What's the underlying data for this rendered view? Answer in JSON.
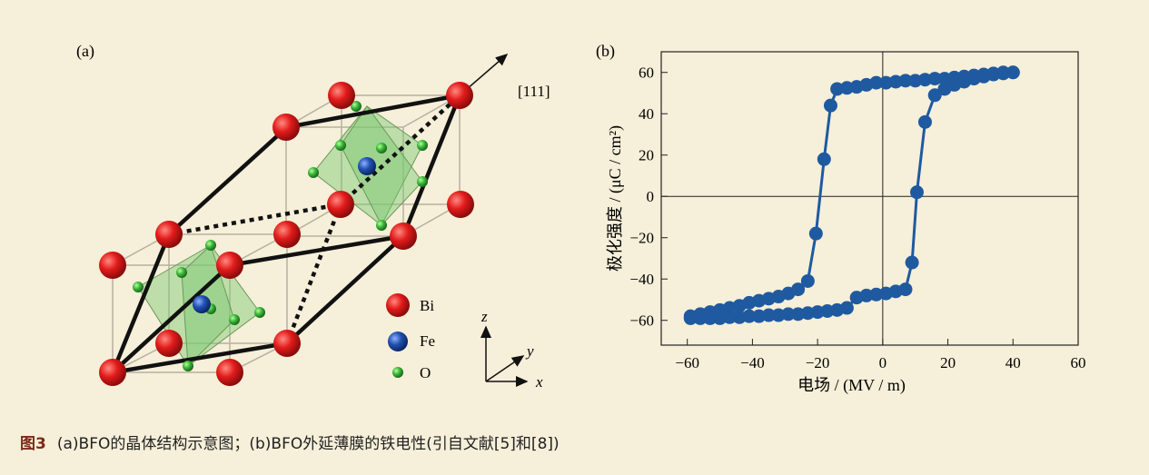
{
  "panel_a": {
    "label": "(a)",
    "direction": "[111]",
    "legend": [
      "Bi",
      "Fe",
      "O"
    ],
    "axes": [
      "z",
      "y",
      "x"
    ]
  },
  "chart_data": {
    "type": "line",
    "label": "(b)",
    "x_label": "电场 / (MV / m)",
    "y_label": "极化强度 / (μC / cm²)",
    "xlim": [
      -68,
      60
    ],
    "ylim": [
      -72,
      70
    ],
    "xticks": [
      {
        "value": -60,
        "label": "−60"
      },
      {
        "value": -40,
        "label": "−40"
      },
      {
        "value": -20,
        "label": "−20"
      },
      0,
      20,
      40,
      60
    ],
    "yticks": [
      {
        "value": -60,
        "label": "−60"
      },
      {
        "value": -40,
        "label": "−40"
      },
      {
        "value": -20,
        "label": "−20"
      },
      0,
      20,
      40,
      60
    ],
    "series": [
      {
        "color": "#1f5aa0",
        "x": [
          40,
          37,
          34,
          31,
          28,
          25,
          22,
          19,
          16,
          13,
          10,
          7,
          4,
          1,
          -2,
          -5,
          -8,
          -11,
          -14,
          -16,
          -18,
          -20.5,
          -23,
          -26,
          -29,
          -32,
          -35,
          -38,
          -41,
          -44,
          -47,
          -50,
          -53,
          -56,
          -59
        ],
        "values": [
          60,
          60,
          59.5,
          59,
          58.5,
          58,
          57.5,
          57,
          57,
          56.5,
          56,
          56,
          55.5,
          55,
          55,
          54,
          53,
          52.5,
          52,
          44,
          18,
          -18,
          -41,
          -45,
          -47,
          -48.5,
          -49.5,
          -50.5,
          -51.5,
          -53,
          -54,
          -55,
          -56,
          -57,
          -58
        ]
      },
      {
        "color": "#1f5aa0",
        "x": [
          -59,
          -56,
          -53,
          -50,
          -47,
          -44,
          -41,
          -38,
          -35,
          -32,
          -29,
          -26,
          -23,
          -20,
          -17,
          -14,
          -11,
          -8,
          -5,
          -2,
          1,
          4,
          7,
          9,
          10.5,
          13,
          16,
          19,
          22,
          25,
          28,
          31,
          34,
          37,
          40
        ],
        "values": [
          -59,
          -59,
          -59,
          -59,
          -58.5,
          -58.5,
          -58,
          -58,
          -57.5,
          -57.5,
          -57,
          -57,
          -56.5,
          -56,
          -55.5,
          -55,
          -54,
          -49,
          -48,
          -47.5,
          -47,
          -46,
          -45,
          -32,
          2,
          36,
          49,
          52,
          54,
          55.5,
          57,
          58,
          59,
          59.5,
          60
        ]
      }
    ]
  },
  "caption": {
    "prefix": "图3",
    "text": "(a)BFO的晶体结构示意图；(b)BFO外延薄膜的铁电性(引自文献[5]和[8])"
  }
}
